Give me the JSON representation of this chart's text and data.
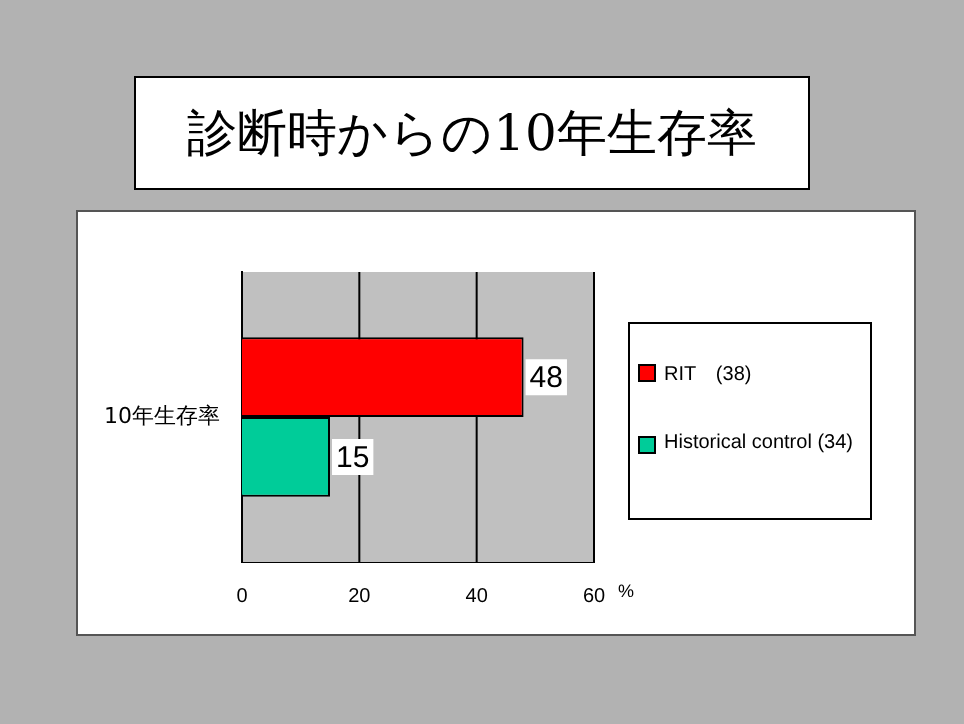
{
  "chart_data": {
    "type": "bar",
    "orientation": "horizontal",
    "title": "診断時からの10年生存率",
    "categories": [
      "10年生存率"
    ],
    "series": [
      {
        "name": "RIT　(38)",
        "color": "#ff0000",
        "values": [
          48
        ]
      },
      {
        "name": "Historical control (34)",
        "color": "#00cc99",
        "values": [
          15
        ]
      }
    ],
    "xlabel": "%",
    "xlim": [
      0,
      60
    ],
    "xticks": [
      0,
      20,
      40,
      60
    ],
    "grid": "x",
    "legend": "right",
    "data_labels": true
  }
}
